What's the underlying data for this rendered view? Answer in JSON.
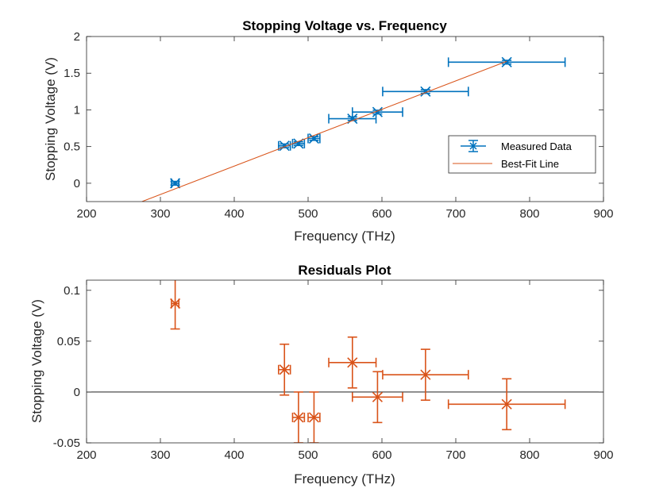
{
  "chart_data": [
    {
      "type": "scatter",
      "title": "Stopping Voltage vs. Frequency",
      "xlabel": "Frequency (THz)",
      "ylabel": "Stopping Voltage (V)",
      "xlim": [
        200,
        900
      ],
      "ylim": [
        -0.25,
        2
      ],
      "xticks": [
        200,
        300,
        400,
        500,
        600,
        700,
        800,
        900
      ],
      "xtick_labels": [
        "200",
        "300",
        "400",
        "500",
        "600",
        "700",
        "800",
        "900"
      ],
      "yticks": [
        0,
        0.5,
        1,
        1.5,
        2
      ],
      "ytick_labels": [
        "0",
        "0.5",
        "1",
        "1.5",
        "2"
      ],
      "grid": false,
      "legend_position": "right",
      "series": [
        {
          "name": "Measured Data",
          "style": "errorbar",
          "color": "#0072BD",
          "points": [
            {
              "x": 320,
              "y": 0.0,
              "xerr": 5,
              "yerr": 0.025
            },
            {
              "x": 468,
              "y": 0.51,
              "xerr": 8,
              "yerr": 0.025
            },
            {
              "x": 487,
              "y": 0.54,
              "xerr": 8,
              "yerr": 0.025
            },
            {
              "x": 508,
              "y": 0.61,
              "xerr": 8,
              "yerr": 0.025
            },
            {
              "x": 560,
              "y": 0.88,
              "xerr": 32,
              "yerr": 0.025
            },
            {
              "x": 594,
              "y": 0.97,
              "xerr": 34,
              "yerr": 0.025
            },
            {
              "x": 659,
              "y": 1.25,
              "xerr": 58,
              "yerr": 0.025
            },
            {
              "x": 769,
              "y": 1.65,
              "xerr": 79,
              "yerr": 0.025
            }
          ]
        },
        {
          "name": "Best-Fit Line",
          "style": "line",
          "color": "#D95319",
          "x": [
            275,
            769
          ],
          "y": [
            -0.25,
            1.662
          ]
        }
      ]
    },
    {
      "type": "scatter",
      "title": "Residuals Plot",
      "xlabel": "Frequency (THz)",
      "ylabel": "Stopping Voltage (V)",
      "xlim": [
        200,
        900
      ],
      "ylim": [
        -0.05,
        0.11
      ],
      "xticks": [
        200,
        300,
        400,
        500,
        600,
        700,
        800,
        900
      ],
      "xtick_labels": [
        "200",
        "300",
        "400",
        "500",
        "600",
        "700",
        "800",
        "900"
      ],
      "yticks": [
        -0.05,
        0,
        0.05,
        0.1
      ],
      "ytick_labels": [
        "-0.05",
        "0",
        "0.05",
        "0.1"
      ],
      "grid": false,
      "reference_line": 0,
      "series": [
        {
          "style": "errorbar",
          "color": "#D95319",
          "points": [
            {
              "x": 320,
              "y": 0.087,
              "xerr": 5,
              "yerr": 0.025
            },
            {
              "x": 468,
              "y": 0.022,
              "xerr": 8,
              "yerr": 0.025
            },
            {
              "x": 487,
              "y": -0.025,
              "xerr": 8,
              "yerr": 0.025
            },
            {
              "x": 508,
              "y": -0.025,
              "xerr": 8,
              "yerr": 0.025
            },
            {
              "x": 560,
              "y": 0.029,
              "xerr": 32,
              "yerr": 0.025
            },
            {
              "x": 594,
              "y": -0.005,
              "xerr": 34,
              "yerr": 0.025
            },
            {
              "x": 659,
              "y": 0.017,
              "xerr": 58,
              "yerr": 0.025
            },
            {
              "x": 769,
              "y": -0.012,
              "xerr": 79,
              "yerr": 0.025
            }
          ]
        }
      ]
    }
  ]
}
